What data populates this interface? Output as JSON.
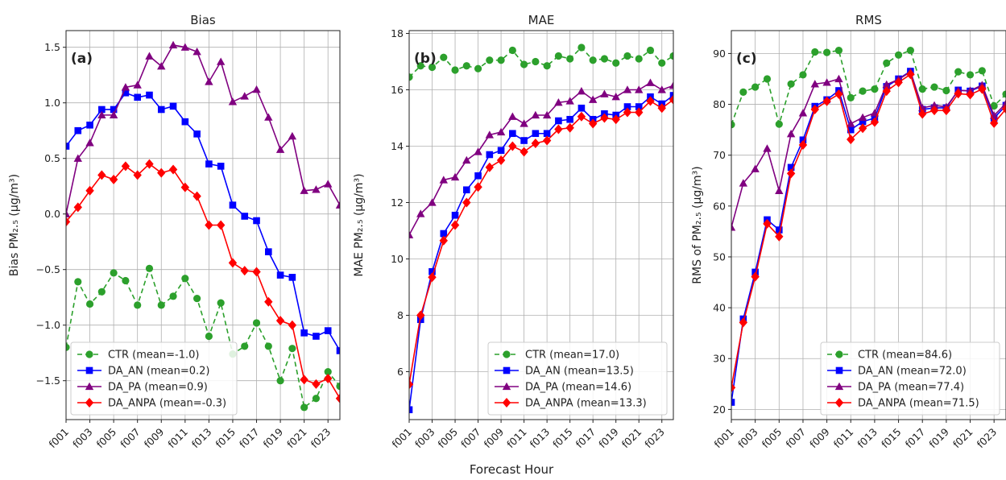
{
  "figure": {
    "xlabel": "Forecast Hour"
  },
  "chart_data": [
    {
      "type": "line",
      "title": "Bias",
      "panel_label": "(a)",
      "ylabel": "Bias PM₂.₅ (µg/m³)",
      "ylim": [
        -1.85,
        1.65
      ],
      "yticks": [
        -1.5,
        -1.0,
        -0.5,
        0.0,
        0.5,
        1.0,
        1.5
      ],
      "yticklabels": [
        "−1.5",
        "−1.0",
        "−0.5",
        "0.0",
        "0.5",
        "1.0",
        "1.5"
      ],
      "legend_position": "lower-left",
      "grid": true,
      "x": [
        "f001",
        "f002",
        "f003",
        "f004",
        "f005",
        "f006",
        "f007",
        "f008",
        "f009",
        "f010",
        "f011",
        "f012",
        "f013",
        "f014",
        "f015",
        "f016",
        "f017",
        "f018",
        "f019",
        "f020",
        "f021",
        "f022",
        "f023",
        "f024"
      ],
      "xticklabels": [
        "f001",
        "f003",
        "f005",
        "f007",
        "f009",
        "f011",
        "f013",
        "f015",
        "f017",
        "f019",
        "f021",
        "f023"
      ],
      "series": [
        {
          "name": "CTR",
          "legend": "CTR (mean=-1.0)",
          "color": "#2ca02c",
          "dashed": true,
          "marker": "circle",
          "values": [
            -1.2,
            -0.61,
            -0.81,
            -0.7,
            -0.53,
            -0.6,
            -0.82,
            -0.49,
            -0.82,
            -0.74,
            -0.58,
            -0.76,
            -1.1,
            -0.8,
            -1.26,
            -1.19,
            -0.98,
            -1.19,
            -1.5,
            -1.21,
            -1.74,
            -1.66,
            -1.42,
            -1.55
          ]
        },
        {
          "name": "DA_AN",
          "legend": "DA_AN (mean=0.2)",
          "color": "#0000ff",
          "dashed": false,
          "marker": "square",
          "values": [
            0.61,
            0.75,
            0.8,
            0.94,
            0.94,
            1.09,
            1.05,
            1.07,
            0.94,
            0.97,
            0.83,
            0.72,
            0.45,
            0.43,
            0.08,
            -0.02,
            -0.06,
            -0.34,
            -0.55,
            -0.57,
            -1.07,
            -1.1,
            -1.05,
            -1.23
          ]
        },
        {
          "name": "DA_PA",
          "legend": "DA_PA (mean=0.9)",
          "color": "#800080",
          "dashed": false,
          "marker": "triangle",
          "values": [
            0.0,
            0.5,
            0.64,
            0.89,
            0.89,
            1.14,
            1.16,
            1.42,
            1.33,
            1.52,
            1.5,
            1.46,
            1.19,
            1.37,
            1.01,
            1.06,
            1.12,
            0.87,
            0.58,
            0.7,
            0.21,
            0.22,
            0.27,
            0.08
          ]
        },
        {
          "name": "DA_ANPA",
          "legend": "DA_ANPA (mean=-0.3)",
          "color": "#ff0000",
          "dashed": false,
          "marker": "diamond",
          "values": [
            -0.07,
            0.06,
            0.21,
            0.35,
            0.31,
            0.43,
            0.35,
            0.45,
            0.37,
            0.4,
            0.24,
            0.16,
            -0.1,
            -0.1,
            -0.44,
            -0.51,
            -0.52,
            -0.79,
            -0.96,
            -1.0,
            -1.49,
            -1.53,
            -1.48,
            -1.66
          ]
        }
      ]
    },
    {
      "type": "line",
      "title": "MAE",
      "panel_label": "(b)",
      "ylabel": "MAE PM₂.₅ (µg/m³)",
      "ylim": [
        4.3,
        18.1
      ],
      "yticks": [
        6,
        8,
        10,
        12,
        14,
        16,
        18
      ],
      "yticklabels": [
        "6",
        "8",
        "10",
        "12",
        "14",
        "16",
        "18"
      ],
      "legend_position": "lower-right",
      "grid": true,
      "x": [
        "f001",
        "f002",
        "f003",
        "f004",
        "f005",
        "f006",
        "f007",
        "f008",
        "f009",
        "f010",
        "f011",
        "f012",
        "f013",
        "f014",
        "f015",
        "f016",
        "f017",
        "f018",
        "f019",
        "f020",
        "f021",
        "f022",
        "f023",
        "f024"
      ],
      "xticklabels": [
        "f001",
        "f003",
        "f005",
        "f007",
        "f009",
        "f011",
        "f013",
        "f015",
        "f017",
        "f019",
        "f021",
        "f023"
      ],
      "series": [
        {
          "name": "CTR",
          "legend": "CTR (mean=17.0)",
          "color": "#2ca02c",
          "dashed": true,
          "marker": "circle",
          "values": [
            16.45,
            16.85,
            16.8,
            17.15,
            16.7,
            16.85,
            16.75,
            17.05,
            17.05,
            17.4,
            16.9,
            17.0,
            16.85,
            17.2,
            17.1,
            17.5,
            17.05,
            17.1,
            16.95,
            17.2,
            17.1,
            17.4,
            16.95,
            17.2
          ]
        },
        {
          "name": "DA_AN",
          "legend": "DA_AN (mean=13.5)",
          "color": "#0000ff",
          "dashed": false,
          "marker": "square",
          "values": [
            4.65,
            7.85,
            9.55,
            10.9,
            11.55,
            12.45,
            12.95,
            13.7,
            13.85,
            14.45,
            14.2,
            14.45,
            14.45,
            14.9,
            14.95,
            15.35,
            14.95,
            15.15,
            15.1,
            15.4,
            15.4,
            15.75,
            15.5,
            15.8
          ]
        },
        {
          "name": "DA_PA",
          "legend": "DA_PA (mean=14.6)",
          "color": "#800080",
          "dashed": false,
          "marker": "triangle",
          "values": [
            10.85,
            11.6,
            12.0,
            12.8,
            12.9,
            13.5,
            13.8,
            14.4,
            14.5,
            15.05,
            14.8,
            15.1,
            15.1,
            15.55,
            15.6,
            15.95,
            15.65,
            15.85,
            15.75,
            16.0,
            16.0,
            16.25,
            16.0,
            16.15
          ]
        },
        {
          "name": "DA_ANPA",
          "legend": "DA_ANPA (mean=13.3)",
          "color": "#ff0000",
          "dashed": false,
          "marker": "diamond",
          "values": [
            5.55,
            8.0,
            9.35,
            10.65,
            11.2,
            12.0,
            12.55,
            13.25,
            13.5,
            14.0,
            13.8,
            14.1,
            14.2,
            14.6,
            14.65,
            15.05,
            14.8,
            15.0,
            14.95,
            15.2,
            15.2,
            15.6,
            15.35,
            15.65
          ]
        }
      ]
    },
    {
      "type": "line",
      "title": "RMS",
      "panel_label": "(c)",
      "ylabel": "RMS of PM₂.₅ (µg/m³)",
      "ylim": [
        18,
        94.5
      ],
      "yticks": [
        20,
        30,
        40,
        50,
        60,
        70,
        80,
        90
      ],
      "yticklabels": [
        "20",
        "30",
        "40",
        "50",
        "60",
        "70",
        "80",
        "90"
      ],
      "legend_position": "lower-right",
      "grid": true,
      "x": [
        "f001",
        "f002",
        "f003",
        "f004",
        "f005",
        "f006",
        "f007",
        "f008",
        "f009",
        "f010",
        "f011",
        "f012",
        "f013",
        "f014",
        "f015",
        "f016",
        "f017",
        "f018",
        "f019",
        "f020",
        "f021",
        "f022",
        "f023",
        "f024"
      ],
      "xticklabels": [
        "f001",
        "f003",
        "f005",
        "f007",
        "f009",
        "f011",
        "f013",
        "f015",
        "f017",
        "f019",
        "f021",
        "f023"
      ],
      "series": [
        {
          "name": "CTR",
          "legend": "CTR (mean=84.6)",
          "color": "#2ca02c",
          "dashed": true,
          "marker": "circle",
          "values": [
            76.0,
            82.4,
            83.4,
            85.0,
            76.1,
            84.0,
            85.8,
            90.3,
            90.2,
            90.6,
            81.3,
            82.6,
            83.0,
            88.1,
            89.7,
            90.6,
            83.0,
            83.4,
            82.7,
            86.4,
            85.8,
            86.6,
            79.7,
            82.0
          ]
        },
        {
          "name": "DA_AN",
          "legend": "DA_AN (mean=72.0)",
          "color": "#0000ff",
          "dashed": false,
          "marker": "square",
          "values": [
            21.4,
            37.8,
            47.0,
            57.3,
            55.3,
            67.6,
            73.0,
            79.6,
            80.9,
            82.7,
            75.0,
            76.6,
            77.3,
            83.5,
            85.0,
            86.5,
            79.0,
            79.3,
            79.3,
            82.8,
            82.6,
            83.6,
            77.3,
            79.8
          ]
        },
        {
          "name": "DA_PA",
          "legend": "DA_PA (mean=77.4)",
          "color": "#800080",
          "dashed": false,
          "marker": "triangle",
          "values": [
            55.8,
            64.5,
            67.3,
            71.3,
            63.0,
            74.2,
            78.3,
            84.0,
            84.3,
            85.0,
            76.2,
            77.4,
            78.3,
            83.9,
            84.9,
            86.4,
            79.3,
            79.8,
            79.5,
            82.7,
            82.7,
            83.8,
            77.8,
            80.2
          ]
        },
        {
          "name": "DA_ANPA",
          "legend": "DA_ANPA (mean=71.5)",
          "color": "#ff0000",
          "dashed": false,
          "marker": "diamond",
          "values": [
            24.3,
            37.1,
            46.1,
            56.5,
            54.0,
            66.4,
            72.0,
            79.0,
            80.6,
            82.0,
            73.1,
            75.3,
            76.5,
            82.6,
            84.3,
            85.9,
            78.1,
            78.8,
            78.8,
            82.1,
            81.9,
            83.0,
            76.3,
            79.1
          ]
        }
      ]
    }
  ]
}
